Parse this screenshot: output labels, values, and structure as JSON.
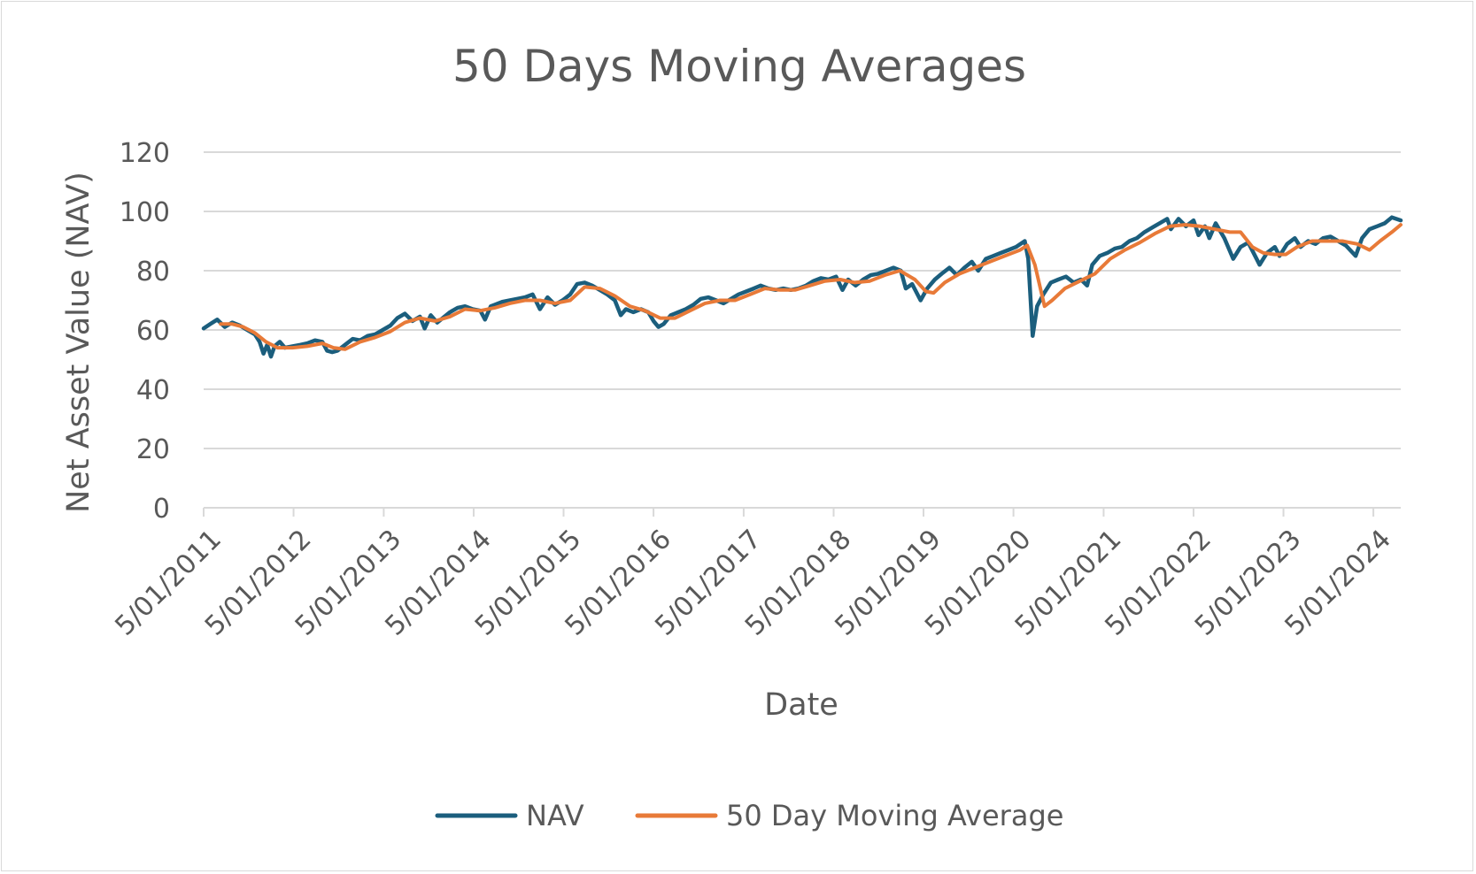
{
  "chart_data": {
    "type": "line",
    "title": "50 Days Moving Averages",
    "xlabel": "Date",
    "ylabel": "Net Asset Value (NAV)",
    "ylim": [
      0,
      120
    ],
    "yticks": [
      0,
      20,
      40,
      60,
      80,
      100,
      120
    ],
    "xlim": [
      "2011-01-05",
      "2024-04-25"
    ],
    "xtick_labels": [
      "5/01/2011",
      "5/01/2012",
      "5/01/2013",
      "5/01/2014",
      "5/01/2015",
      "5/01/2016",
      "5/01/2017",
      "5/01/2018",
      "5/01/2019",
      "5/01/2020",
      "5/01/2021",
      "5/01/2022",
      "5/01/2023",
      "5/01/2024"
    ],
    "xtick_dates": [
      "2011-01-05",
      "2012-01-05",
      "2013-01-05",
      "2014-01-05",
      "2015-01-05",
      "2016-01-05",
      "2017-01-05",
      "2018-01-05",
      "2019-01-05",
      "2020-01-05",
      "2021-01-05",
      "2022-01-05",
      "2023-01-05",
      "2024-01-05"
    ],
    "grid": true,
    "legend_position": "bottom",
    "series": [
      {
        "name": "NAV",
        "color": "#1b5e7d",
        "points": [
          [
            "2011-01-05",
            60.5
          ],
          [
            "2011-02-01",
            62
          ],
          [
            "2011-03-01",
            63.5
          ],
          [
            "2011-04-01",
            61
          ],
          [
            "2011-05-01",
            62.5
          ],
          [
            "2011-06-01",
            61.5
          ],
          [
            "2011-07-01",
            60
          ],
          [
            "2011-08-01",
            58.5
          ],
          [
            "2011-08-20",
            56
          ],
          [
            "2011-09-05",
            52
          ],
          [
            "2011-09-20",
            55
          ],
          [
            "2011-10-05",
            51
          ],
          [
            "2011-10-20",
            54.5
          ],
          [
            "2011-11-10",
            56
          ],
          [
            "2011-12-01",
            54
          ],
          [
            "2012-01-01",
            54.5
          ],
          [
            "2012-02-01",
            55
          ],
          [
            "2012-03-01",
            55.5
          ],
          [
            "2012-04-01",
            56.5
          ],
          [
            "2012-05-01",
            56
          ],
          [
            "2012-05-20",
            53
          ],
          [
            "2012-06-10",
            52.5
          ],
          [
            "2012-07-01",
            53
          ],
          [
            "2012-08-01",
            55
          ],
          [
            "2012-09-01",
            57
          ],
          [
            "2012-10-01",
            56.5
          ],
          [
            "2012-11-01",
            58
          ],
          [
            "2012-12-01",
            58.5
          ],
          [
            "2013-01-01",
            60
          ],
          [
            "2013-02-01",
            61.5
          ],
          [
            "2013-03-01",
            64
          ],
          [
            "2013-04-01",
            65.5
          ],
          [
            "2013-05-01",
            63
          ],
          [
            "2013-06-01",
            64.5
          ],
          [
            "2013-06-20",
            60.5
          ],
          [
            "2013-07-15",
            65
          ],
          [
            "2013-08-10",
            62.5
          ],
          [
            "2013-09-01",
            64
          ],
          [
            "2013-10-01",
            66
          ],
          [
            "2013-11-01",
            67.5
          ],
          [
            "2013-12-01",
            68
          ],
          [
            "2014-01-01",
            67
          ],
          [
            "2014-02-01",
            66.5
          ],
          [
            "2014-02-20",
            63.5
          ],
          [
            "2014-03-15",
            68
          ],
          [
            "2014-04-01",
            68.5
          ],
          [
            "2014-05-01",
            69.5
          ],
          [
            "2014-06-01",
            70
          ],
          [
            "2014-07-01",
            70.5
          ],
          [
            "2014-08-01",
            71
          ],
          [
            "2014-09-01",
            72
          ],
          [
            "2014-10-01",
            67
          ],
          [
            "2014-11-01",
            71
          ],
          [
            "2014-12-01",
            68.5
          ],
          [
            "2015-01-01",
            70
          ],
          [
            "2015-02-01",
            72
          ],
          [
            "2015-03-01",
            75.5
          ],
          [
            "2015-04-01",
            76
          ],
          [
            "2015-05-01",
            75
          ],
          [
            "2015-06-01",
            73.5
          ],
          [
            "2015-07-01",
            72
          ],
          [
            "2015-08-01",
            70
          ],
          [
            "2015-08-25",
            65
          ],
          [
            "2015-09-15",
            67
          ],
          [
            "2015-10-15",
            66
          ],
          [
            "2015-11-15",
            67
          ],
          [
            "2015-12-15",
            66
          ],
          [
            "2016-01-05",
            63
          ],
          [
            "2016-01-25",
            61
          ],
          [
            "2016-02-15",
            62
          ],
          [
            "2016-03-15",
            65
          ],
          [
            "2016-04-15",
            66
          ],
          [
            "2016-05-15",
            67
          ],
          [
            "2016-06-15",
            68.5
          ],
          [
            "2016-07-15",
            70.5
          ],
          [
            "2016-08-15",
            71
          ],
          [
            "2016-09-15",
            70
          ],
          [
            "2016-10-15",
            69
          ],
          [
            "2016-11-15",
            70.5
          ],
          [
            "2016-12-15",
            72
          ],
          [
            "2017-01-15",
            73
          ],
          [
            "2017-02-15",
            74
          ],
          [
            "2017-03-15",
            75
          ],
          [
            "2017-04-15",
            74
          ],
          [
            "2017-05-15",
            73.5
          ],
          [
            "2017-06-15",
            74
          ],
          [
            "2017-07-15",
            73.5
          ],
          [
            "2017-08-15",
            74
          ],
          [
            "2017-09-15",
            75
          ],
          [
            "2017-10-15",
            76.5
          ],
          [
            "2017-11-15",
            77.5
          ],
          [
            "2017-12-15",
            77
          ],
          [
            "2018-01-15",
            78
          ],
          [
            "2018-02-10",
            73.5
          ],
          [
            "2018-03-05",
            77
          ],
          [
            "2018-04-05",
            75
          ],
          [
            "2018-05-05",
            77
          ],
          [
            "2018-06-05",
            78.5
          ],
          [
            "2018-07-05",
            79
          ],
          [
            "2018-08-05",
            80
          ],
          [
            "2018-09-05",
            81
          ],
          [
            "2018-10-05",
            80
          ],
          [
            "2018-10-25",
            74
          ],
          [
            "2018-11-20",
            75.5
          ],
          [
            "2018-12-24",
            70
          ],
          [
            "2019-01-20",
            74
          ],
          [
            "2019-02-20",
            77
          ],
          [
            "2019-03-20",
            79
          ],
          [
            "2019-04-20",
            81
          ],
          [
            "2019-05-20",
            78.5
          ],
          [
            "2019-06-20",
            81
          ],
          [
            "2019-07-20",
            83
          ],
          [
            "2019-08-15",
            80
          ],
          [
            "2019-09-15",
            84
          ],
          [
            "2019-10-15",
            85
          ],
          [
            "2019-11-15",
            86
          ],
          [
            "2019-12-15",
            87
          ],
          [
            "2020-01-15",
            88
          ],
          [
            "2020-02-20",
            90
          ],
          [
            "2020-03-05",
            84
          ],
          [
            "2020-03-23",
            58
          ],
          [
            "2020-04-10",
            68
          ],
          [
            "2020-05-05",
            72
          ],
          [
            "2020-06-05",
            76
          ],
          [
            "2020-07-05",
            77
          ],
          [
            "2020-08-05",
            78
          ],
          [
            "2020-09-05",
            76
          ],
          [
            "2020-10-05",
            77
          ],
          [
            "2020-10-30",
            75
          ],
          [
            "2020-11-20",
            82
          ],
          [
            "2020-12-20",
            85
          ],
          [
            "2021-01-20",
            86
          ],
          [
            "2021-02-20",
            87.5
          ],
          [
            "2021-03-20",
            88
          ],
          [
            "2021-04-20",
            90
          ],
          [
            "2021-05-20",
            91
          ],
          [
            "2021-06-20",
            93
          ],
          [
            "2021-07-20",
            94.5
          ],
          [
            "2021-08-20",
            96
          ],
          [
            "2021-09-20",
            97.5
          ],
          [
            "2021-10-05",
            94
          ],
          [
            "2021-11-05",
            97.5
          ],
          [
            "2021-12-05",
            95
          ],
          [
            "2022-01-05",
            97
          ],
          [
            "2022-01-25",
            92
          ],
          [
            "2022-02-20",
            95
          ],
          [
            "2022-03-10",
            91
          ],
          [
            "2022-04-05",
            96
          ],
          [
            "2022-05-10",
            91
          ],
          [
            "2022-06-15",
            84
          ],
          [
            "2022-07-15",
            88
          ],
          [
            "2022-08-15",
            89.5
          ],
          [
            "2022-09-30",
            82
          ],
          [
            "2022-10-30",
            86
          ],
          [
            "2022-12-01",
            88
          ],
          [
            "2022-12-20",
            85
          ],
          [
            "2023-01-20",
            89
          ],
          [
            "2023-02-20",
            91
          ],
          [
            "2023-03-15",
            88
          ],
          [
            "2023-04-15",
            90
          ],
          [
            "2023-05-15",
            89
          ],
          [
            "2023-06-15",
            91
          ],
          [
            "2023-07-15",
            91.5
          ],
          [
            "2023-08-15",
            90
          ],
          [
            "2023-09-15",
            88.5
          ],
          [
            "2023-10-25",
            85
          ],
          [
            "2023-11-20",
            91
          ],
          [
            "2023-12-20",
            94
          ],
          [
            "2024-01-20",
            95
          ],
          [
            "2024-02-20",
            96
          ],
          [
            "2024-03-20",
            98
          ],
          [
            "2024-04-25",
            97
          ]
        ]
      },
      {
        "name": "50 Day Moving Average",
        "color": "#e87a38",
        "points": [
          [
            "2011-03-15",
            62
          ],
          [
            "2011-05-01",
            62
          ],
          [
            "2011-06-15",
            61
          ],
          [
            "2011-08-01",
            59
          ],
          [
            "2011-09-15",
            56
          ],
          [
            "2011-11-01",
            54
          ],
          [
            "2012-01-01",
            54
          ],
          [
            "2012-03-01",
            54.5
          ],
          [
            "2012-05-01",
            55.5
          ],
          [
            "2012-06-15",
            54
          ],
          [
            "2012-08-01",
            53.5
          ],
          [
            "2012-10-01",
            56
          ],
          [
            "2012-12-01",
            57.5
          ],
          [
            "2013-02-01",
            59.5
          ],
          [
            "2013-04-01",
            62.5
          ],
          [
            "2013-06-01",
            64
          ],
          [
            "2013-08-01",
            63
          ],
          [
            "2013-10-01",
            64.5
          ],
          [
            "2013-12-01",
            67
          ],
          [
            "2014-02-01",
            66.5
          ],
          [
            "2014-04-01",
            67.5
          ],
          [
            "2014-06-01",
            69
          ],
          [
            "2014-08-01",
            70
          ],
          [
            "2014-10-01",
            70
          ],
          [
            "2014-12-01",
            69
          ],
          [
            "2015-02-01",
            70
          ],
          [
            "2015-04-01",
            74.5
          ],
          [
            "2015-06-01",
            74
          ],
          [
            "2015-08-01",
            71.5
          ],
          [
            "2015-10-01",
            68
          ],
          [
            "2015-12-01",
            66.5
          ],
          [
            "2016-02-01",
            64
          ],
          [
            "2016-04-01",
            64
          ],
          [
            "2016-06-01",
            66.5
          ],
          [
            "2016-08-01",
            69
          ],
          [
            "2016-10-01",
            70
          ],
          [
            "2016-12-01",
            70
          ],
          [
            "2017-02-01",
            72
          ],
          [
            "2017-04-01",
            74
          ],
          [
            "2017-06-01",
            73.5
          ],
          [
            "2017-08-01",
            73.5
          ],
          [
            "2017-10-01",
            75
          ],
          [
            "2017-12-01",
            76.5
          ],
          [
            "2018-02-01",
            77
          ],
          [
            "2018-04-01",
            76
          ],
          [
            "2018-06-01",
            76.5
          ],
          [
            "2018-08-01",
            78.5
          ],
          [
            "2018-10-01",
            80
          ],
          [
            "2018-12-01",
            77
          ],
          [
            "2019-01-15",
            73
          ],
          [
            "2019-02-15",
            72.5
          ],
          [
            "2019-04-01",
            76
          ],
          [
            "2019-06-01",
            79
          ],
          [
            "2019-08-01",
            81
          ],
          [
            "2019-10-01",
            83
          ],
          [
            "2019-12-01",
            85
          ],
          [
            "2020-02-01",
            87
          ],
          [
            "2020-03-01",
            88.5
          ],
          [
            "2020-04-01",
            82
          ],
          [
            "2020-05-10",
            68
          ],
          [
            "2020-06-10",
            70
          ],
          [
            "2020-08-01",
            74
          ],
          [
            "2020-10-01",
            76.5
          ],
          [
            "2020-12-01",
            79
          ],
          [
            "2021-02-01",
            84
          ],
          [
            "2021-04-01",
            87
          ],
          [
            "2021-06-01",
            89.5
          ],
          [
            "2021-08-01",
            92.5
          ],
          [
            "2021-10-01",
            95
          ],
          [
            "2021-12-01",
            95.5
          ],
          [
            "2022-02-01",
            95
          ],
          [
            "2022-04-01",
            94
          ],
          [
            "2022-06-01",
            93
          ],
          [
            "2022-07-15",
            93
          ],
          [
            "2022-09-01",
            88
          ],
          [
            "2022-10-15",
            86
          ],
          [
            "2022-12-01",
            85.5
          ],
          [
            "2023-01-15",
            85.5
          ],
          [
            "2023-03-01",
            88
          ],
          [
            "2023-05-01",
            90
          ],
          [
            "2023-07-01",
            90
          ],
          [
            "2023-09-01",
            90
          ],
          [
            "2023-11-01",
            89
          ],
          [
            "2023-12-20",
            87
          ],
          [
            "2024-02-01",
            90
          ],
          [
            "2024-03-20",
            93
          ],
          [
            "2024-04-25",
            95.5
          ]
        ]
      }
    ]
  }
}
